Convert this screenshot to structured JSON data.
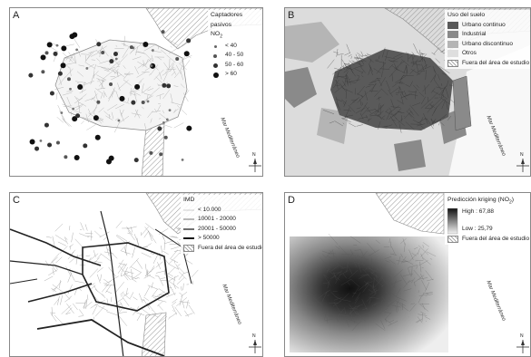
{
  "panels": {
    "a": {
      "letter": "A",
      "legend": {
        "title": "Captadores pasivos",
        "subtitle": "NO",
        "subtitle_sub": "2",
        "classes": [
          "< 40",
          "40 - 50",
          "50 - 60",
          "> 60"
        ]
      },
      "sea": "Mar Mediterráneo"
    },
    "b": {
      "letter": "B",
      "legend": {
        "title": "Uso del suelo",
        "classes": [
          {
            "label": "Urbano continuo",
            "color": "#5a5a5a"
          },
          {
            "label": "Industrial",
            "color": "#8a8a8a"
          },
          {
            "label": "Urbano discontinuo",
            "color": "#b5b5b5"
          },
          {
            "label": "Otros",
            "color": "#dedede"
          }
        ],
        "outside": "Fuera del área de estudio"
      },
      "sea": "Mar Mediterráneo"
    },
    "c": {
      "letter": "C",
      "legend": {
        "title": "IMD",
        "classes": [
          "< 10.000",
          "10001 - 20000",
          "20001 - 50000",
          "> 50000"
        ],
        "outside": "Fuera del área de estudio"
      },
      "sea": "Mar Mediterráneo"
    },
    "d": {
      "letter": "D",
      "legend": {
        "title": "Predicción kriging (NO",
        "title_sub": "2",
        "title_end": ")",
        "high": "High : 67,88",
        "low": "Low : 25,79",
        "outside": "Fuera del área de estudio"
      },
      "sea": "Mar Mediterráneo"
    }
  },
  "outside_legend_a": "Fuera del área de estudio",
  "north_letter": "N"
}
